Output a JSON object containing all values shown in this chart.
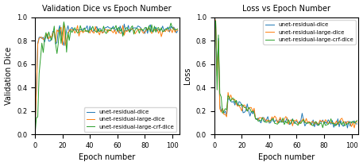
{
  "title_left": "Validation Dice vs Epoch Number",
  "title_right": "Loss vs Epoch Number",
  "xlabel": "Epoch number",
  "ylabel_left": "Validation Dice",
  "ylabel_right": "Loss",
  "legend_labels": [
    "unet-residual-dice",
    "unet-residual-large-dice",
    "unet-residual-large-crf-dice"
  ],
  "colors": [
    "#1f77b4",
    "#ff7f0e",
    "#2ca02c"
  ],
  "n_epochs": 105,
  "figsize": [
    4.57,
    2.09
  ],
  "dpi": 100
}
